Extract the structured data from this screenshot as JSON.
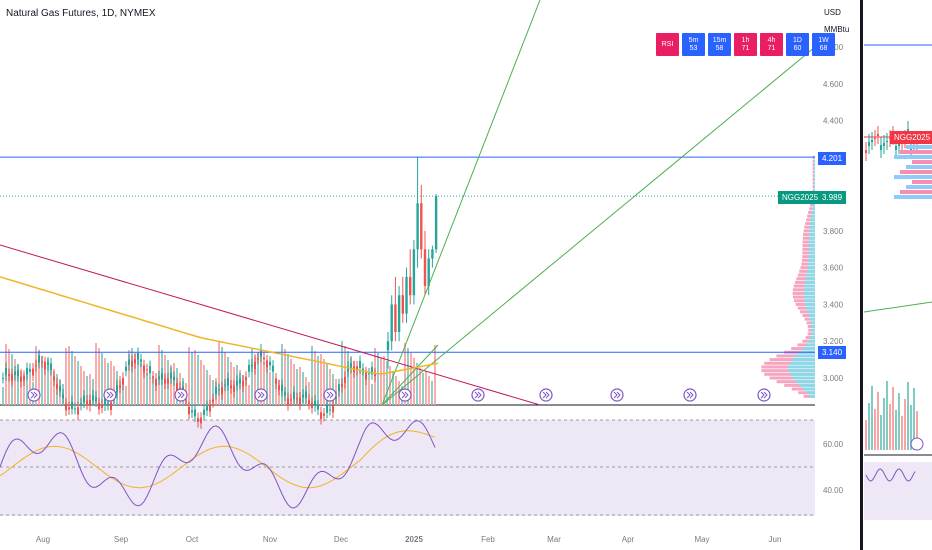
{
  "header": {
    "ticker": "Natural Gas Futures, 1D, NYMEX",
    "currency": "USD",
    "unit": "MMBtu"
  },
  "rsi_badges": [
    {
      "tf": "RSI",
      "val": "",
      "color": "#e91e63"
    },
    {
      "tf": "5m",
      "val": "53",
      "color": "#2962ff"
    },
    {
      "tf": "15m",
      "val": "58",
      "color": "#2962ff"
    },
    {
      "tf": "1h",
      "val": "71",
      "color": "#e91e63"
    },
    {
      "tf": "4h",
      "val": "71",
      "color": "#e91e63"
    },
    {
      "tf": "1D",
      "val": "60",
      "color": "#2962ff"
    },
    {
      "tf": "1W",
      "val": "68",
      "color": "#2962ff"
    }
  ],
  "price_tags": {
    "high": "4.201",
    "symbol": "NGG2025",
    "last": "3.989",
    "support": "3.140",
    "side_symbol": "NGG2025"
  },
  "colors": {
    "up": "#26a69a",
    "down": "#ef5350",
    "ma": "#f0b429",
    "trend_red": "#c2185b",
    "fan_green": "#4caf50",
    "hline_blue": "#2962ff",
    "rsi_line": "#7e57c2",
    "rsi_band": "#ede7f6"
  },
  "chart_data": [
    {
      "type": "candlestick",
      "title": "Natural Gas Futures, 1D, NYMEX",
      "x_ticks": [
        "Aug",
        "Sep",
        "Oct",
        "Nov",
        "Dec",
        "2025",
        "Feb",
        "Mar",
        "Apr",
        "May",
        "Jun"
      ],
      "y_ticks": [
        "3.000",
        "3.200",
        "3.400",
        "3.600",
        "3.800",
        "4.000",
        "4.200",
        "4.400",
        "4.600",
        "4.800"
      ],
      "ylim": [
        2.85,
        5.0
      ],
      "recent_candles": [
        {
          "date": "2024-11-28",
          "o": 3.15,
          "h": 3.25,
          "l": 3.05,
          "c": 3.2
        },
        {
          "date": "2024-12-02",
          "o": 3.2,
          "h": 3.45,
          "l": 3.15,
          "c": 3.4
        },
        {
          "date": "2024-12-05",
          "o": 3.4,
          "h": 3.55,
          "l": 3.2,
          "c": 3.25
        },
        {
          "date": "2024-12-09",
          "o": 3.25,
          "h": 3.5,
          "l": 3.2,
          "c": 3.45
        },
        {
          "date": "2024-12-12",
          "o": 3.45,
          "h": 3.55,
          "l": 3.3,
          "c": 3.35
        },
        {
          "date": "2024-12-16",
          "o": 3.35,
          "h": 3.6,
          "l": 3.3,
          "c": 3.55
        },
        {
          "date": "2024-12-19",
          "o": 3.55,
          "h": 3.7,
          "l": 3.4,
          "c": 3.45
        },
        {
          "date": "2024-12-23",
          "o": 3.45,
          "h": 3.75,
          "l": 3.4,
          "c": 3.7
        },
        {
          "date": "2024-12-26",
          "o": 3.7,
          "h": 4.2,
          "l": 3.6,
          "c": 3.95
        },
        {
          "date": "2024-12-30",
          "o": 3.95,
          "h": 4.05,
          "l": 3.65,
          "c": 3.7
        },
        {
          "date": "2025-01-02",
          "o": 3.7,
          "h": 3.8,
          "l": 3.45,
          "c": 3.5
        },
        {
          "date": "2025-01-06",
          "o": 3.5,
          "h": 3.7,
          "l": 3.45,
          "c": 3.65
        },
        {
          "date": "2025-01-08",
          "o": 3.65,
          "h": 3.72,
          "l": 3.6,
          "c": 3.7
        },
        {
          "date": "2025-01-10",
          "o": 3.7,
          "h": 4.0,
          "l": 3.68,
          "c": 3.989
        }
      ],
      "horizontal_levels": [
        4.201,
        3.989,
        3.14,
        4.8
      ],
      "last_price": 3.989
    },
    {
      "type": "line",
      "title": "RSI",
      "y_ticks": [
        "40.00",
        "60.00"
      ],
      "ylim": [
        30,
        75
      ],
      "bands": [
        30,
        70
      ]
    }
  ]
}
